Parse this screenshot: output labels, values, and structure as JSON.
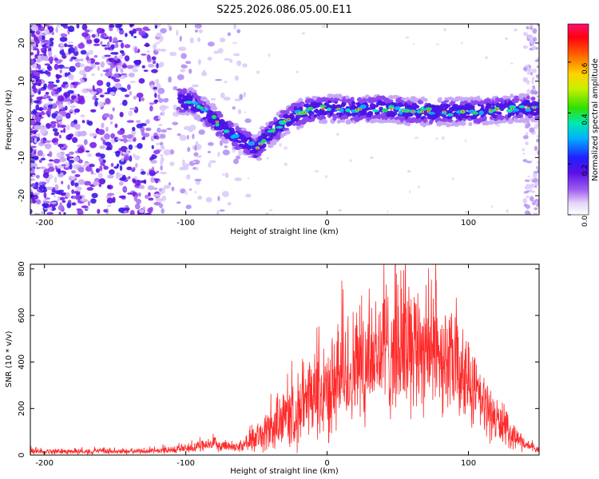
{
  "title": "S225.2026.086.05.00.E11",
  "top_panel": {
    "xlabel": "Height of straight line (km)",
    "ylabel": "Frequency (Hz)",
    "colorbar_label": "Normalized spectral amplitude"
  },
  "bottom_panel": {
    "xlabel": "Height of straight line (km)",
    "ylabel": "SNR (10 * v/v)"
  },
  "chart_data": [
    {
      "type": "heatmap",
      "title": "S225.2026.086.05.00.E11",
      "xlabel": "Height of straight line (km)",
      "ylabel": "Frequency (Hz)",
      "xlim": [
        -210,
        150
      ],
      "ylim": [
        -25,
        25
      ],
      "xticks": [
        -200,
        -100,
        0,
        100
      ],
      "xtick_labels": [
        "-200",
        "-100",
        "0",
        "100"
      ],
      "yticks": [
        -20,
        -10,
        0,
        10,
        20
      ],
      "ytick_labels": [
        "-20",
        "-10",
        "0",
        "10",
        "20"
      ],
      "colorbar": {
        "label": "Normalized spectral amplitude",
        "range": [
          0,
          0.75
        ],
        "ticks": [
          0,
          0.2,
          0.4,
          0.6
        ],
        "tick_labels": [
          "0.0",
          "0.2",
          "0.4",
          "0.6"
        ],
        "colormap": [
          "#ffffff",
          "#d8c4f4",
          "#7b2cf0",
          "#2222ff",
          "#00c0ff",
          "#00e8a0",
          "#40e000",
          "#f0f000",
          "#ff8000",
          "#ff0000",
          "#ff1060"
        ]
      },
      "ridge": {
        "description": "dominant frequency track",
        "x": [
          -105,
          -95,
          -85,
          -75,
          -65,
          -55,
          -50,
          -45,
          -38,
          -30,
          -20,
          -10,
          0,
          20,
          40,
          60,
          80,
          100,
          120,
          140,
          150
        ],
        "frequency": [
          5,
          4.5,
          1.5,
          -1.5,
          -4.5,
          -6.5,
          -8,
          -5.5,
          -3,
          -0.5,
          1.5,
          2.5,
          3,
          2.5,
          3,
          2,
          2,
          2,
          2.5,
          3,
          3
        ]
      }
    },
    {
      "type": "line",
      "xlabel": "Height of straight line (km)",
      "ylabel": "SNR (10 * v/v)",
      "xlim": [
        -210,
        150
      ],
      "ylim": [
        0,
        820
      ],
      "xticks": [
        -200,
        -100,
        0,
        100
      ],
      "xtick_labels": [
        "-200",
        "-100",
        "0",
        "100"
      ],
      "yticks": [
        0,
        200,
        400,
        600,
        800
      ],
      "ytick_labels": [
        "0",
        "200",
        "400",
        "600",
        "800"
      ],
      "color": "#ff2a2a",
      "envelope": {
        "x": [
          -210,
          -200,
          -150,
          -120,
          -100,
          -90,
          -80,
          -70,
          -60,
          -50,
          -40,
          -30,
          -20,
          -10,
          0,
          10,
          20,
          30,
          40,
          50,
          60,
          70,
          80,
          90,
          100,
          110,
          120,
          130,
          140,
          150
        ],
        "mean": [
          15,
          15,
          15,
          18,
          28,
          35,
          45,
          40,
          35,
          70,
          110,
          150,
          190,
          230,
          270,
          320,
          380,
          420,
          450,
          470,
          480,
          470,
          430,
          370,
          300,
          220,
          150,
          90,
          45,
          20
        ],
        "spread": [
          12,
          12,
          12,
          12,
          20,
          25,
          30,
          25,
          25,
          60,
          100,
          130,
          160,
          190,
          210,
          240,
          260,
          280,
          300,
          310,
          300,
          280,
          250,
          220,
          190,
          140,
          100,
          60,
          30,
          15
        ]
      }
    }
  ]
}
